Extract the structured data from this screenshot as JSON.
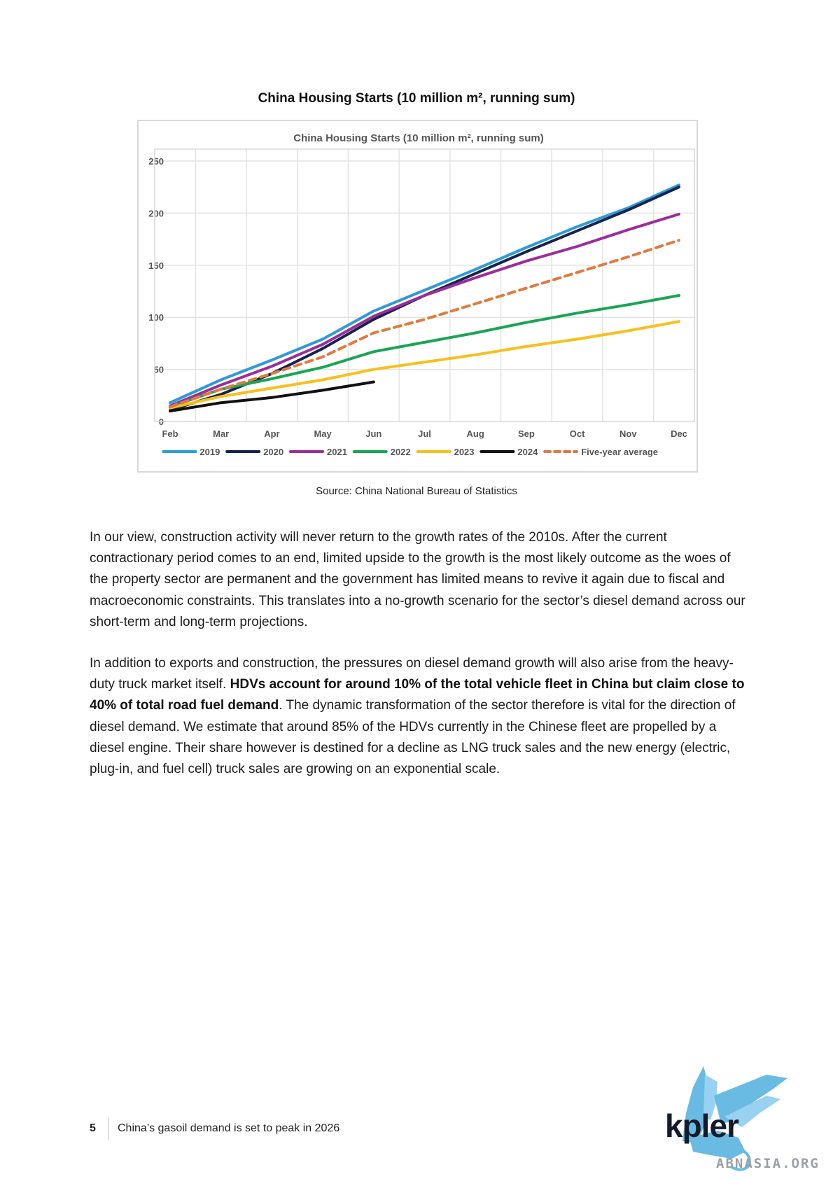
{
  "figure": {
    "title": "China Housing Starts (10 million m², running sum)",
    "source": "Source: China National Bureau of Statistics"
  },
  "chart_data": {
    "type": "line",
    "title": "China Housing Starts (10 million m², running sum)",
    "xlabel": "",
    "ylabel": "",
    "categories": [
      "Feb",
      "Mar",
      "Apr",
      "May",
      "Jun",
      "Jul",
      "Aug",
      "Sep",
      "Oct",
      "Nov",
      "Dec"
    ],
    "ylim": [
      0,
      250
    ],
    "yticks": [
      0,
      50,
      100,
      150,
      200,
      250
    ],
    "grid": true,
    "legend_position": "bottom",
    "series": [
      {
        "name": "2019",
        "color": "#2e9bd6",
        "dashed": false,
        "values": [
          18,
          40,
          59,
          79,
          106,
          126,
          146,
          167,
          187,
          205,
          227
        ]
      },
      {
        "name": "2020",
        "color": "#17234f",
        "dashed": false,
        "values": [
          11,
          26,
          46,
          70,
          98,
          121,
          142,
          163,
          183,
          203,
          225
        ]
      },
      {
        "name": "2021",
        "color": "#9b2e9b",
        "dashed": false,
        "values": [
          15,
          35,
          53,
          74,
          101,
          121,
          138,
          154,
          168,
          184,
          199
        ]
      },
      {
        "name": "2022",
        "color": "#1aa556",
        "dashed": false,
        "values": [
          14,
          31,
          41,
          52,
          67,
          76,
          85,
          95,
          104,
          112,
          121
        ]
      },
      {
        "name": "2023",
        "color": "#f7c01d",
        "dashed": false,
        "values": [
          13,
          24,
          32,
          40,
          50,
          57,
          64,
          72,
          79,
          87,
          96
        ]
      },
      {
        "name": "2024",
        "color": "#111111",
        "dashed": false,
        "values": [
          10,
          18,
          23,
          30,
          38,
          null,
          null,
          null,
          null,
          null,
          null
        ]
      },
      {
        "name": "Five-year average",
        "color": "#e07b3f",
        "dashed": true,
        "values": [
          14,
          31,
          46,
          62,
          85,
          98,
          113,
          128,
          143,
          158,
          174
        ]
      }
    ]
  },
  "paragraphs": {
    "p1": "In our view, construction activity will never return to the growth rates of the 2010s. After the current contractionary period comes to an end, limited upside to the growth is the most likely outcome as the woes of the property sector are permanent and the government has limited means to revive it again due to fiscal and macroeconomic constraints. This translates into a no-growth scenario for the sector’s diesel demand across our short-term and long-term projections.",
    "p2_a": "In addition to exports and construction, the pressures on diesel demand growth will also arise from the heavy-duty truck market itself. ",
    "p2_bold": "HDVs account for around 10% of the total vehicle fleet in China but claim close to 40% of total road fuel demand",
    "p2_b": ". The dynamic transformation of the sector therefore is vital for the direction of diesel demand. We estimate that around 85% of the HDVs currently in the Chinese fleet are propelled by a diesel engine. Their share however is destined for a decline as LNG truck sales and the new energy (electric, plug-in, and fuel cell) truck sales are growing on an exponential scale."
  },
  "footer": {
    "page_number": "5",
    "doc_title": "China’s gasoil demand is set to peak in 2026"
  },
  "brand": {
    "logo_text": "kpler",
    "logo_icon": "griffin-icon",
    "watermark": "ABNASIA.ORG"
  }
}
